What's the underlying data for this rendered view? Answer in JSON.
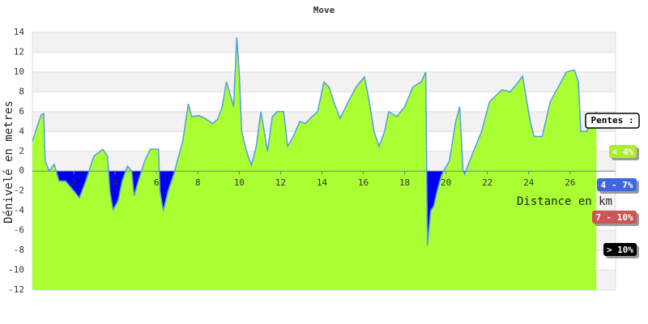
{
  "chart_data": {
    "type": "area",
    "title": "Move",
    "xlabel": "Distance en km",
    "ylabel": "Dénivelé en metres",
    "x": [
      0,
      0.23,
      0.43,
      0.55,
      0.62,
      0.82,
      1.05,
      1.29,
      1.6,
      2.0,
      2.27,
      2.58,
      2.97,
      3.4,
      3.63,
      3.75,
      3.9,
      4.14,
      4.34,
      4.6,
      4.8,
      4.92,
      5.12,
      5.43,
      5.7,
      6.1,
      6.17,
      6.33,
      6.56,
      6.84,
      7.27,
      7.54,
      7.7,
      8.05,
      8.36,
      8.71,
      8.95,
      9.18,
      9.38,
      9.53,
      9.73,
      9.88,
      10.0,
      10.12,
      10.35,
      10.59,
      10.82,
      11.05,
      11.37,
      11.6,
      11.84,
      12.15,
      12.34,
      12.62,
      12.93,
      13.2,
      13.52,
      13.79,
      14.1,
      14.34,
      14.57,
      14.88,
      15.27,
      15.66,
      16.05,
      16.25,
      16.52,
      16.76,
      17.03,
      17.23,
      17.62,
      18.0,
      18.4,
      18.8,
      19.02,
      19.1,
      19.26,
      19.41,
      19.57,
      19.77,
      19.88,
      20.16,
      20.47,
      20.66,
      20.82,
      20.9,
      21.33,
      21.72,
      22.1,
      22.7,
      23.1,
      23.5,
      23.7,
      24.07,
      24.26,
      24.65,
      25.04,
      25.43,
      25.82,
      26.21,
      26.4,
      26.52,
      26.8,
      27.03,
      27.27
    ],
    "series": [
      {
        "name": "Dénivelé",
        "color": "#5599ee",
        "fill": "#aaff33",
        "negative_fill": "#0000ee",
        "values": [
          3,
          4.5,
          5.7,
          5.8,
          1,
          0,
          0.7,
          -1,
          -1,
          -2,
          -2.7,
          -1,
          1.5,
          2.2,
          1.5,
          -2,
          -3.9,
          -3,
          -1,
          0.5,
          0,
          -2.5,
          -1,
          1,
          2.2,
          2.2,
          -2,
          -4,
          -2,
          -0.3,
          3,
          6.8,
          5.5,
          5.6,
          5.3,
          4.8,
          5.2,
          6.5,
          9,
          8,
          6.5,
          13.5,
          10,
          4,
          2,
          0.6,
          2.5,
          6,
          2,
          5.5,
          6,
          6,
          2.5,
          3.5,
          5,
          4.8,
          5.5,
          6,
          9,
          8.5,
          7,
          5.3,
          7,
          8.5,
          9.5,
          7.5,
          4,
          2.5,
          4,
          6,
          5.5,
          6.5,
          8.5,
          9,
          10,
          -7.5,
          -4,
          -3.5,
          -2,
          -0.5,
          0,
          1,
          5,
          6.5,
          0,
          -0.3,
          2,
          4,
          7,
          8.2,
          8,
          9,
          9.6,
          5,
          3.5,
          3.5,
          7,
          8.5,
          10,
          10.2,
          9,
          4,
          4,
          5,
          6
        ]
      }
    ],
    "xlim": [
      0,
      28.2
    ],
    "ylim": [
      -12,
      14
    ],
    "xticks": [
      2,
      4,
      6,
      8,
      10,
      12,
      14,
      16,
      18,
      20,
      22,
      24,
      26
    ],
    "yticks": [
      -12,
      -10,
      -8,
      -6,
      -4,
      -2,
      0,
      2,
      4,
      6,
      8,
      10,
      12,
      14
    ],
    "grid": true,
    "legend": {
      "title": "Pentes :",
      "items": [
        {
          "label": "< 4%",
          "color": "#aaee33"
        },
        {
          "label": "4 - 7%",
          "color": "#3f66dd"
        },
        {
          "label": "7 - 10%",
          "color": "#cc5555"
        },
        {
          "label": "> 10%",
          "color": "#000000"
        }
      ]
    }
  }
}
